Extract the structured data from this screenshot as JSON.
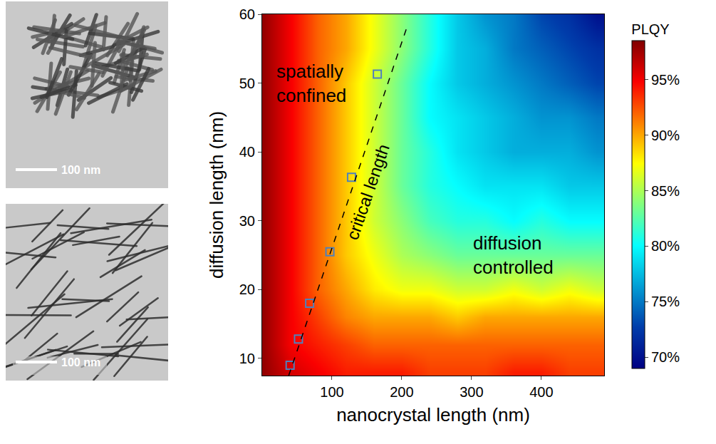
{
  "chart_data": {
    "type": "heatmap",
    "x_label": "nanocrystal length (nm)",
    "y_label": "diffusion length (nm)",
    "xlim": [
      0,
      490
    ],
    "xticks": [
      100,
      200,
      300,
      400
    ],
    "ylim": [
      7.5,
      60
    ],
    "yticks": [
      10,
      20,
      30,
      40,
      50,
      60
    ],
    "x": [
      0,
      40,
      80,
      120,
      160,
      200,
      240,
      280,
      320,
      360,
      400,
      440,
      480
    ],
    "y": [
      8,
      12,
      16,
      20,
      25,
      30,
      35,
      40,
      45,
      50,
      55,
      60
    ],
    "z": [
      [
        98,
        96,
        95,
        94,
        94,
        94,
        93,
        93,
        93,
        94,
        94,
        93,
        93
      ],
      [
        98,
        95,
        94,
        93,
        92,
        92,
        92,
        92,
        92,
        92,
        92,
        92,
        92
      ],
      [
        98,
        95,
        93,
        91,
        90,
        90,
        90,
        89,
        90,
        90,
        90,
        90,
        90
      ],
      [
        98,
        95,
        92,
        90,
        88,
        87,
        87,
        86,
        86,
        87,
        86,
        87,
        86
      ],
      [
        98,
        95,
        92,
        89,
        87,
        85,
        84,
        83,
        83,
        83,
        83,
        83,
        83
      ],
      [
        98,
        95,
        92,
        89,
        86,
        84,
        82,
        81,
        81,
        80,
        81,
        80,
        80
      ],
      [
        98,
        95,
        92,
        89,
        86,
        83,
        81,
        80,
        79,
        79,
        79,
        78,
        78
      ],
      [
        98,
        95,
        92,
        89,
        86,
        83,
        81,
        79,
        78,
        77,
        77,
        77,
        76
      ],
      [
        98,
        95,
        92,
        89,
        86,
        83,
        80,
        79,
        78,
        77,
        76,
        76,
        75
      ],
      [
        98,
        95,
        92,
        89,
        86,
        83,
        80,
        78,
        77,
        76,
        75,
        74,
        73
      ],
      [
        98,
        95,
        92,
        90,
        87,
        84,
        81,
        78,
        77,
        75,
        74,
        73,
        72
      ],
      [
        98,
        95,
        92,
        90,
        87,
        84,
        81,
        78,
        76,
        75,
        73,
        72,
        70
      ]
    ],
    "color": "Jet",
    "colorbar_title": "PLQY",
    "zlim": [
      69,
      98.5
    ],
    "zticks": [
      {
        "value": 70,
        "label": "70%"
      },
      {
        "value": 75,
        "label": "75%"
      },
      {
        "value": 80,
        "label": "80%"
      },
      {
        "value": 85,
        "label": "85%"
      },
      {
        "value": 90,
        "label": "90%"
      },
      {
        "value": 95,
        "label": "95%"
      }
    ],
    "series": [
      {
        "type": "scatter",
        "marker": "square-open",
        "color": "#4f81bd",
        "x": [
          40,
          52,
          68,
          97,
          128,
          165
        ],
        "values": [
          9,
          12.8,
          18,
          25.5,
          36.3,
          51.3
        ]
      },
      {
        "name": "critical length",
        "type": "line",
        "line_style": "dash",
        "color": "#000000",
        "x": [
          38,
          207
        ],
        "values": [
          7.5,
          58
        ]
      }
    ],
    "annotations": [
      {
        "text": "spatially confined",
        "x": 70,
        "y": 50
      },
      {
        "text": "diffusion controlled",
        "x": 360,
        "y": 25
      }
    ],
    "grid": false
  },
  "panels": [
    {
      "scale_bar": "100 nm"
    },
    {
      "scale_bar": "100 nm"
    }
  ]
}
